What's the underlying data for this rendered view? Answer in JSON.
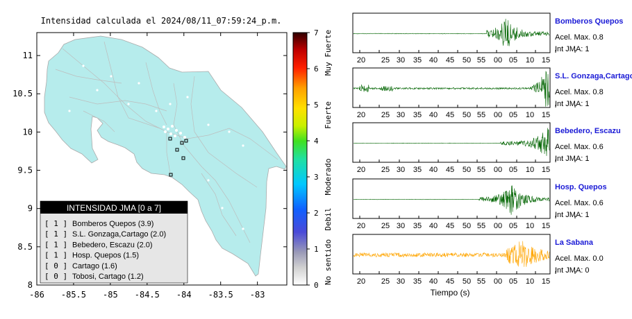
{
  "map": {
    "title": "Intensidad calculada el 2024/08/11_07:59:24_p.m.",
    "xticks": [
      "-86",
      "-85.5",
      "-85",
      "-84.5",
      "-84",
      "-83.5",
      "-83"
    ],
    "yticks": [
      "11",
      "10.5",
      "10",
      "9.5",
      "9",
      "8.5",
      "8"
    ],
    "land_color": "#b6ecec",
    "legend": {
      "header": "INTENSIDAD JMA [0 a 7]",
      "items": [
        {
          "level": "[ 1 ]",
          "name": "Bomberos Quepos (3.9)"
        },
        {
          "level": "[ 1 ]",
          "name": "S.L. Gonzaga,Cartago (2.0)"
        },
        {
          "level": "[ 1 ]",
          "name": "Bebedero, Escazu (2.0)"
        },
        {
          "level": "[ 1 ]",
          "name": "Hosp. Quepos (1.5)"
        },
        {
          "level": "[ 0 ]",
          "name": "Cartago (1.6)"
        },
        {
          "level": "[ 0 ]",
          "name": "Tobosi, Cartago (1.2)"
        }
      ]
    }
  },
  "colorbar": {
    "ticks": [
      "7",
      "6",
      "5",
      "4",
      "3",
      "2",
      "1",
      "0"
    ],
    "labels": [
      "Muy Fuerte",
      "Fuerte",
      "Moderado",
      "Debil",
      "No sentido"
    ]
  },
  "traces": {
    "xlabel": "Tiempo (s)",
    "tick_labels": [
      "20",
      "25",
      "30",
      "35",
      "40",
      "45",
      "50",
      "55",
      "00",
      "05",
      "10",
      "15"
    ],
    "stations": [
      {
        "name": "Bomberos Quepos",
        "accel": "Acel. Max. 0.8",
        "int": "Int JMA: 1",
        "color": "#006400"
      },
      {
        "name": "S.L. Gonzaga,Cartago",
        "accel": "Acel. Max. 0.8",
        "int": "Int JMA: 1",
        "color": "#006400"
      },
      {
        "name": "Bebedero, Escazu",
        "accel": "Acel. Max. 0.6",
        "int": "Int JMA: 1",
        "color": "#006400"
      },
      {
        "name": "Hosp. Quepos",
        "accel": "Acel. Max. 0.6",
        "int": "Int JMA: 1",
        "color": "#006400"
      },
      {
        "name": "La Sabana",
        "accel": "Acel. Max. 0.0",
        "int": "Int JMA: 0",
        "color": "#ffa500"
      }
    ]
  },
  "chart_data": {
    "type": "scatter",
    "title": "Intensidad calculada el 2024/08/11_07:59:24_p.m.",
    "xlim": [
      -86,
      -82.6
    ],
    "ylim": [
      8,
      11.3
    ],
    "colorbar_range": [
      0,
      7
    ],
    "stations": [
      {
        "name": "Bomberos Quepos",
        "intensity": 3.9,
        "jma": 1
      },
      {
        "name": "S.L. Gonzaga,Cartago",
        "intensity": 2.0,
        "jma": 1
      },
      {
        "name": "Bebedero, Escazu",
        "intensity": 2.0,
        "jma": 1
      },
      {
        "name": "Hosp. Quepos",
        "intensity": 1.5,
        "jma": 1
      },
      {
        "name": "Cartago",
        "intensity": 1.6,
        "jma": 0
      },
      {
        "name": "Tobosi, Cartago",
        "intensity": 1.2,
        "jma": 0
      }
    ],
    "waveforms": [
      {
        "name": "Bomberos Quepos",
        "accel_max": 0.8,
        "int_jma": 1
      },
      {
        "name": "S.L. Gonzaga,Cartago",
        "accel_max": 0.8,
        "int_jma": 1
      },
      {
        "name": "Bebedero, Escazu",
        "accel_max": 0.6,
        "int_jma": 1
      },
      {
        "name": "Hosp. Quepos",
        "accel_max": 0.6,
        "int_jma": 1
      },
      {
        "name": "La Sabana",
        "accel_max": 0.0,
        "int_jma": 0
      }
    ]
  }
}
